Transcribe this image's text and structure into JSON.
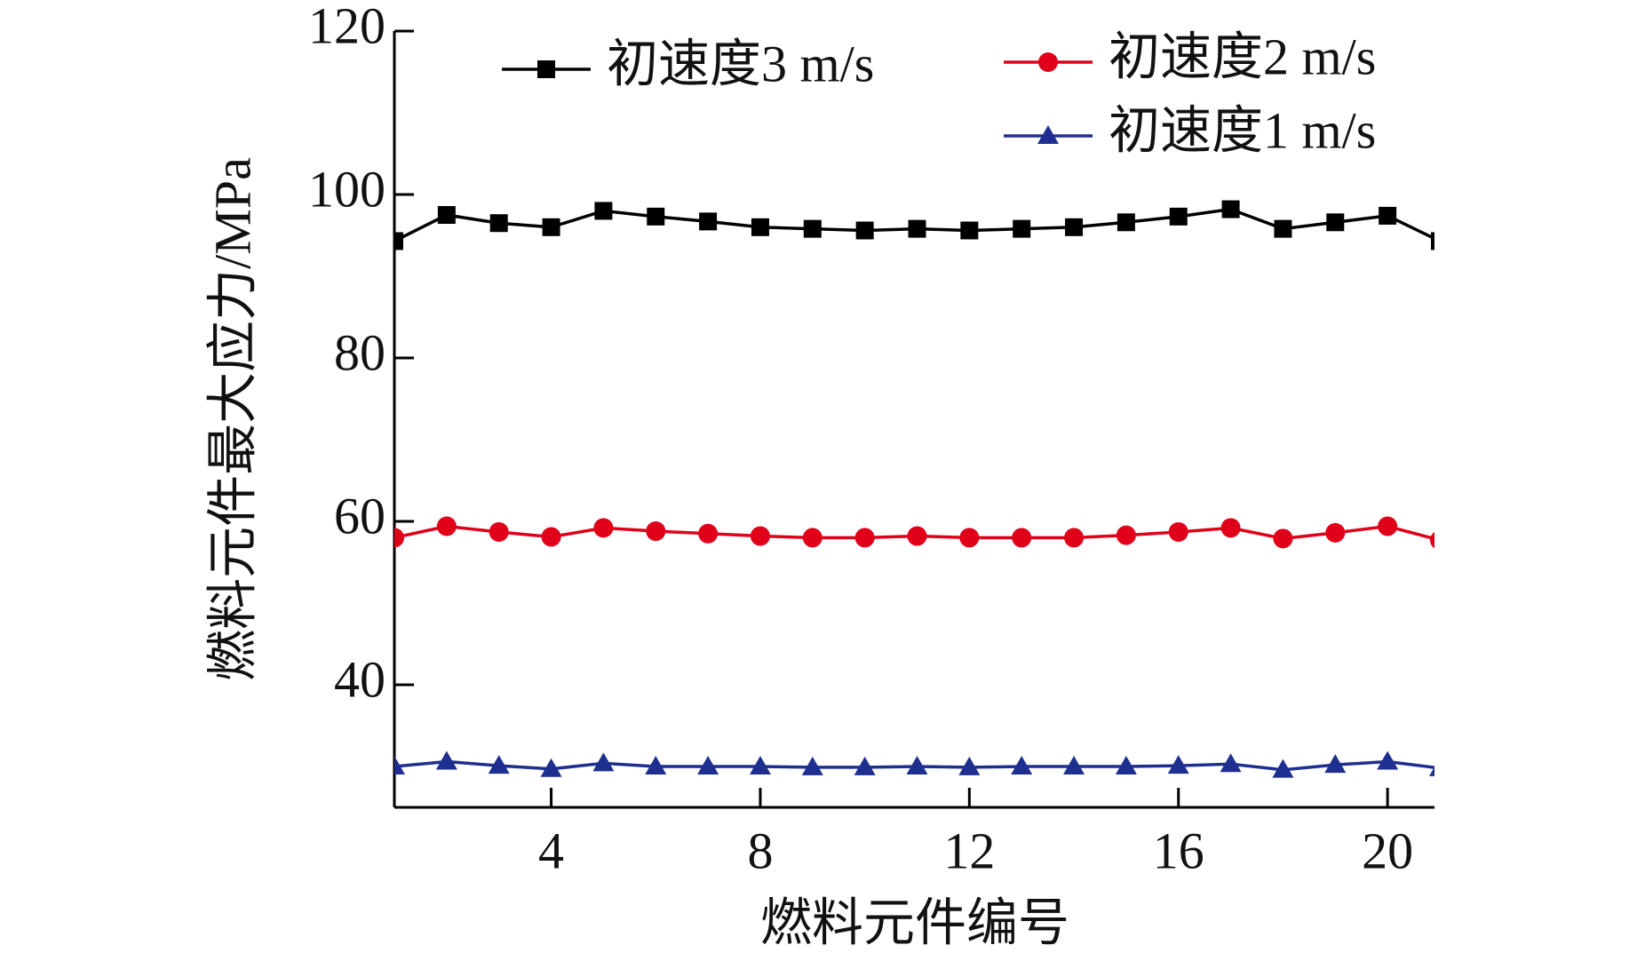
{
  "chart_data": {
    "type": "line",
    "x_label": "燃料元件编号",
    "y_label": "燃料元件最大应力/MPa",
    "x": [
      1,
      2,
      3,
      4,
      5,
      6,
      7,
      8,
      9,
      10,
      11,
      12,
      13,
      14,
      15,
      16,
      17,
      18,
      19,
      20,
      21
    ],
    "series": [
      {
        "name": "初速度3 m/s",
        "color": "#000000",
        "marker": "square",
        "values": [
          94.3,
          97.5,
          96.5,
          96,
          98,
          97.3,
          96.7,
          96,
          95.8,
          95.6,
          95.8,
          95.6,
          95.8,
          96,
          96.6,
          97.3,
          98.2,
          95.8,
          96.6,
          97.4,
          94.3
        ]
      },
      {
        "name": "初速度2 m/s",
        "color": "#e0001a",
        "marker": "circle",
        "values": [
          58,
          59.4,
          58.7,
          58.1,
          59.2,
          58.8,
          58.5,
          58.2,
          58,
          58,
          58.2,
          58,
          58,
          58,
          58.3,
          58.7,
          59.2,
          57.9,
          58.6,
          59.4,
          57.7
        ]
      },
      {
        "name": "初速度1 m/s",
        "color": "#1f2f8f",
        "marker": "triangle",
        "values": [
          30,
          30.6,
          30.1,
          29.7,
          30.4,
          30,
          30,
          30,
          29.9,
          29.9,
          30,
          29.9,
          30,
          30,
          30,
          30.1,
          30.3,
          29.6,
          30.2,
          30.6,
          29.8
        ]
      }
    ],
    "xlim": [
      1,
      21
    ],
    "xticks": [
      4,
      8,
      12,
      16,
      20
    ],
    "ylim": [
      25,
      120
    ],
    "yticks": [
      40,
      60,
      80,
      100,
      120
    ],
    "grid": false,
    "legend": "top"
  }
}
